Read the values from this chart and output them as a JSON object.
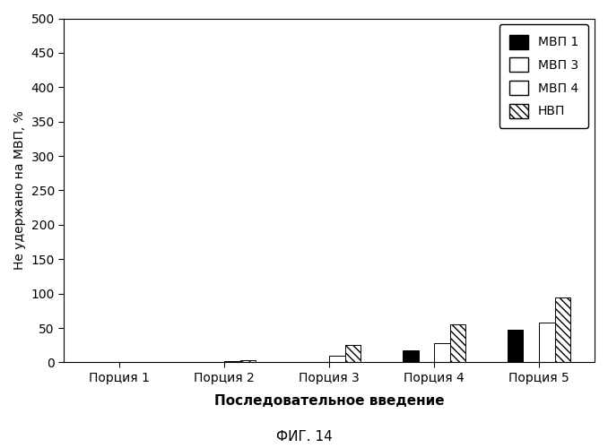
{
  "categories": [
    "Порция 1",
    "Порция 2",
    "Порция 3",
    "Порция 4",
    "Порция 5"
  ],
  "series": {
    "МВП 1": [
      0,
      0,
      0,
      18,
      47
    ],
    "МВП 3": [
      0,
      0,
      0,
      0,
      0
    ],
    "МВП 4": [
      0,
      2,
      10,
      28,
      58
    ],
    "НВП": [
      0,
      3,
      25,
      55,
      95
    ]
  },
  "colors": [
    "black",
    "white",
    "white",
    "white"
  ],
  "hatches": [
    "",
    "",
    "##",
    "\\\\\\\\"
  ],
  "ylabel": "Не удержано на МВП, %",
  "xlabel": "Последовательное введение",
  "title": "ФИГ. 14",
  "ylim": [
    0,
    500
  ],
  "yticks": [
    0,
    50,
    100,
    150,
    200,
    250,
    300,
    350,
    400,
    450,
    500
  ],
  "legend_labels": [
    "МВП 1",
    "МВП 3",
    "МВП 4",
    "НВП"
  ],
  "bar_width": 0.15
}
